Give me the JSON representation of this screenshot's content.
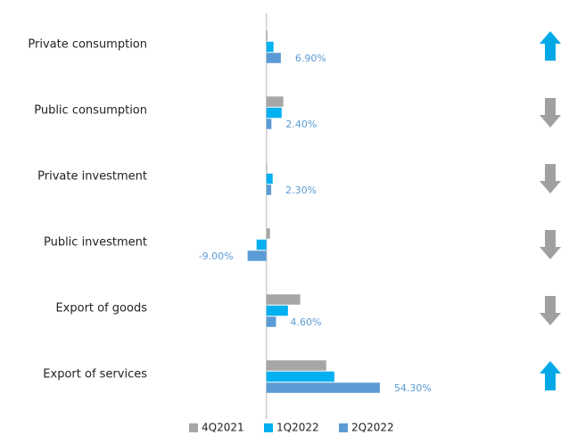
{
  "chart_data": {
    "type": "bar",
    "orientation": "horizontal",
    "categories": [
      "Private consumption",
      "Public consumption",
      "Private investment",
      "Public investment",
      "Export of goods",
      "Export of services"
    ],
    "series": [
      {
        "name": "4Q2021",
        "color": "#a6a6a6",
        "values": [
          0.5,
          8.1,
          0.3,
          1.7,
          16.2,
          28.6
        ]
      },
      {
        "name": "1Q2022",
        "color": "#00b0f0",
        "values": [
          3.4,
          7.3,
          3.0,
          -4.7,
          10.3,
          32.5
        ]
      },
      {
        "name": "2Q2022",
        "color": "#5b9bd5",
        "values": [
          6.9,
          2.4,
          2.3,
          -9.0,
          4.6,
          54.3
        ],
        "value_labels": [
          "6.90%",
          "2.40%",
          "2.30%",
          "-9.00%",
          "4.60%",
          "54.30%"
        ]
      }
    ],
    "xlim": [
      -40,
      100
    ],
    "trend_arrows": [
      "up",
      "down",
      "down",
      "down",
      "down",
      "up"
    ],
    "arrow_colors": {
      "up": "#00a9e6",
      "down": "#a0a0a0"
    },
    "legend": "bottom"
  }
}
